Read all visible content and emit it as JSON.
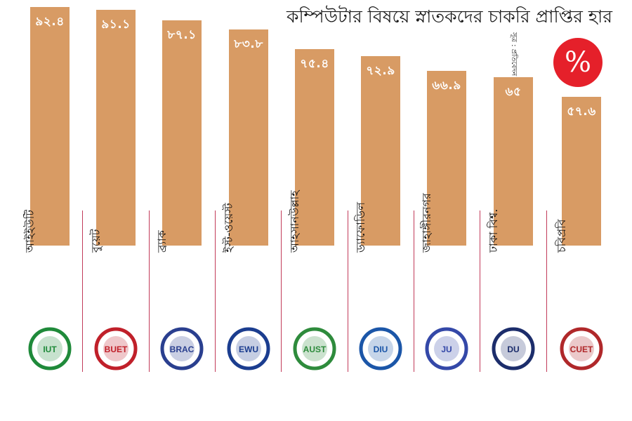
{
  "chart_data": {
    "type": "bar",
    "title": "কম্পিউটার বিষয়ে স্নাতকদের চাকরি প্রাপ্তির হার",
    "unit": "%",
    "categories": [
      "আইইউটি",
      "বুয়েট",
      "ব্র্যাক",
      "ইস্ট-ওয়েস্ট",
      "আহসানউল্লাহ",
      "ড্যাফোডিল",
      "জাহাঙ্গীরনগর",
      "ঢাকা বিশ্ব.",
      "চবিপ্রবি"
    ],
    "values": [
      92.4,
      91.1,
      87.1,
      83.8,
      75.4,
      72.9,
      66.9,
      65,
      57.6
    ],
    "value_labels": [
      "৯২.৪",
      "৯১.১",
      "৮৭.১",
      "৮৩.৮",
      "৭৫.৪",
      "৭২.৯",
      "৬৬.৯",
      "৬৫",
      "৫৭.৬"
    ],
    "logos": [
      "iut-logo",
      "buet-logo",
      "brac-university-logo",
      "east-west-university-logo",
      "aust-logo",
      "diu-logo",
      "jahangirnagar-logo",
      "dhaka-university-logo",
      "cuet-logo"
    ],
    "xlabel": "",
    "ylabel": "",
    "ylim": [
      0,
      100
    ],
    "grid": false,
    "bar_color": "#d89b64"
  },
  "badge": {
    "symbol": "%",
    "color": "#e5202a"
  },
  "source": "সূত্র : প্রতিবেদন"
}
